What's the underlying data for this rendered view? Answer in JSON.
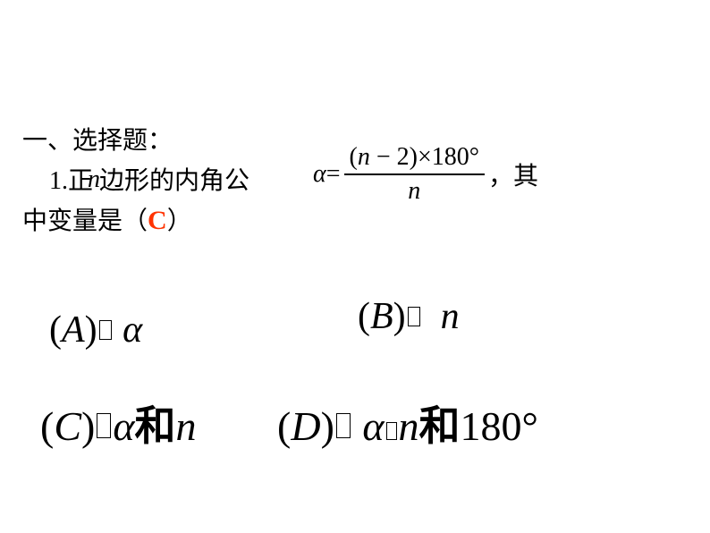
{
  "heading": "一、选择题：",
  "question": {
    "prefix": "1.正",
    "var_n": "n",
    "mid": " 边形的内角公",
    "line2_a": "中变量是（",
    "answer": "C",
    "line2_b": "）",
    "trailing": "，其"
  },
  "formula": {
    "alpha": "α",
    "equals": " = ",
    "numerator_open": "(",
    "numerator_n": "n",
    "numerator_minus": " − ",
    "numerator_two": "2)",
    "numerator_times": "×",
    "numerator_180": "180",
    "degree": "°",
    "denominator": "n"
  },
  "options": {
    "A": {
      "label_open": "(",
      "label": "A",
      "label_close": ")",
      "value": "α"
    },
    "B": {
      "label_open": "(",
      "label": "B",
      "label_close": ")",
      "value": "n"
    },
    "C": {
      "label_open": "(",
      "label": "C",
      "label_close": ")",
      "alpha": "α",
      "he": "和",
      "n": "n"
    },
    "D": {
      "label_open": "(",
      "label": "D",
      "label_close": ")",
      "alpha": "α",
      "n": "n",
      "he": "和",
      "v180": "180",
      "deg": "°"
    }
  },
  "colors": {
    "text": "#000000",
    "answer": "#ff3300",
    "background": "#ffffff"
  },
  "font_sizes": {
    "body": 28,
    "options_AB": 42,
    "options_CD": 46,
    "answer": 30
  }
}
